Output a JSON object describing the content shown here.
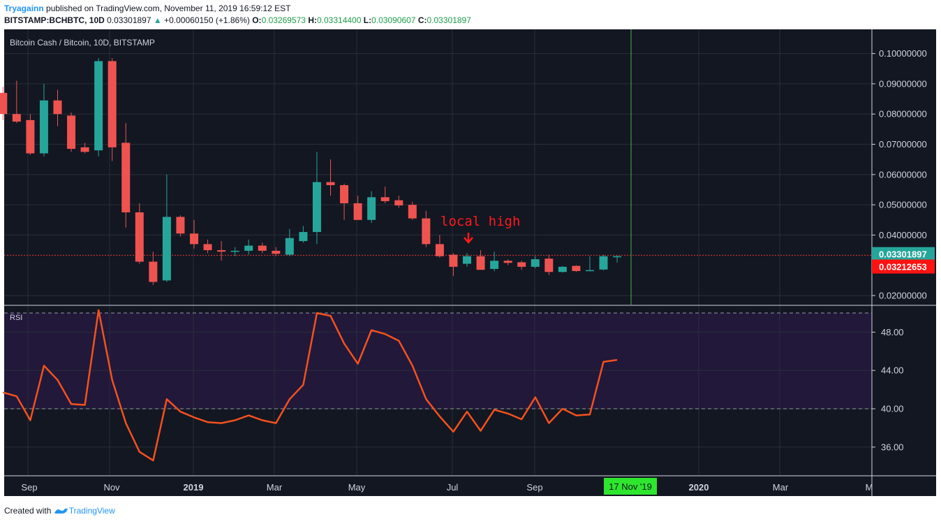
{
  "header": {
    "author": "Tryagainn",
    "published_text": "published on TradingView.com, November 11, 2019 16:59:12 EST",
    "symbol": "BITSTAMP:BCHBTC, 10D",
    "last": "0.03301897",
    "change": "+0.00060150 (+1.86%)",
    "o_label": "O:",
    "o_value": "0.03269573",
    "h_label": "H:",
    "h_value": "0.03314400",
    "l_label": "L:",
    "l_value": "0.03090607",
    "c_label": "C:",
    "c_value": "0.03301897"
  },
  "footer": {
    "created_with": "Created with",
    "brand": "TradingView"
  },
  "colors": {
    "background": "#131722",
    "rsi_band": "#21183a",
    "grid": "#2a2e39",
    "up": "#26a69a",
    "down": "#ef5350",
    "rsi_line": "#f4511e",
    "cursor": "#4caf50",
    "date_badge": "#2ee62e",
    "annotation": "#ff1a1a",
    "axis_text": "#d1d4dc"
  },
  "chart_data": [
    {
      "type": "candlestick",
      "title": "Bitcoin Cash / Bitcoin, 10D, BITSTAMP",
      "ylim": [
        0.017,
        0.108
      ],
      "y_ticks": [
        0.1,
        0.09,
        0.08,
        0.07,
        0.06,
        0.05,
        0.04,
        0.02
      ],
      "y_tick_labels": [
        "0.10000000",
        "0.09000000",
        "0.08000000",
        "0.07000000",
        "0.06000000",
        "0.05000000",
        "0.04000000",
        "0.02000000"
      ],
      "x_labels": [
        "Sep",
        "Nov",
        "2019",
        "Mar",
        "May",
        "Jul",
        "Sep",
        "2020",
        "Mar",
        "M"
      ],
      "cursor_date": "17 Nov '19",
      "price_labels": [
        {
          "value": 0.03301897,
          "text": "0.03301897",
          "kind": "up"
        },
        {
          "value": 0.03212653,
          "text": "0.03212653",
          "kind": "down"
        }
      ],
      "horizontal_line": 0.0333,
      "annotation": {
        "text": "local high",
        "target_candle": 34
      },
      "candles": [
        {
          "o": 0.087,
          "h": 0.089,
          "l": 0.078,
          "c": 0.08
        },
        {
          "o": 0.08,
          "h": 0.091,
          "l": 0.077,
          "c": 0.0775
        },
        {
          "o": 0.078,
          "h": 0.08,
          "l": 0.0665,
          "c": 0.067
        },
        {
          "o": 0.067,
          "h": 0.09,
          "l": 0.066,
          "c": 0.0845
        },
        {
          "o": 0.0845,
          "h": 0.088,
          "l": 0.076,
          "c": 0.08
        },
        {
          "o": 0.0795,
          "h": 0.0805,
          "l": 0.0675,
          "c": 0.0685
        },
        {
          "o": 0.069,
          "h": 0.0705,
          "l": 0.067,
          "c": 0.0675
        },
        {
          "o": 0.068,
          "h": 0.0985,
          "l": 0.066,
          "c": 0.0975
        },
        {
          "o": 0.0975,
          "h": 0.0985,
          "l": 0.0645,
          "c": 0.069
        },
        {
          "o": 0.0705,
          "h": 0.077,
          "l": 0.0425,
          "c": 0.0475
        },
        {
          "o": 0.0475,
          "h": 0.0505,
          "l": 0.0305,
          "c": 0.0312
        },
        {
          "o": 0.0312,
          "h": 0.0345,
          "l": 0.0235,
          "c": 0.0245
        },
        {
          "o": 0.025,
          "h": 0.06,
          "l": 0.0245,
          "c": 0.046
        },
        {
          "o": 0.046,
          "h": 0.0465,
          "l": 0.0395,
          "c": 0.0405
        },
        {
          "o": 0.0405,
          "h": 0.045,
          "l": 0.0355,
          "c": 0.037
        },
        {
          "o": 0.037,
          "h": 0.0385,
          "l": 0.034,
          "c": 0.035
        },
        {
          "o": 0.035,
          "h": 0.038,
          "l": 0.0315,
          "c": 0.0345
        },
        {
          "o": 0.0345,
          "h": 0.036,
          "l": 0.033,
          "c": 0.0348
        },
        {
          "o": 0.0348,
          "h": 0.0385,
          "l": 0.0335,
          "c": 0.0365
        },
        {
          "o": 0.0365,
          "h": 0.0375,
          "l": 0.034,
          "c": 0.0348
        },
        {
          "o": 0.0348,
          "h": 0.036,
          "l": 0.033,
          "c": 0.0338
        },
        {
          "o": 0.0335,
          "h": 0.042,
          "l": 0.033,
          "c": 0.039
        },
        {
          "o": 0.038,
          "h": 0.043,
          "l": 0.0375,
          "c": 0.041
        },
        {
          "o": 0.041,
          "h": 0.0675,
          "l": 0.037,
          "c": 0.0575
        },
        {
          "o": 0.0575,
          "h": 0.065,
          "l": 0.053,
          "c": 0.0565
        },
        {
          "o": 0.0565,
          "h": 0.057,
          "l": 0.045,
          "c": 0.0505
        },
        {
          "o": 0.0505,
          "h": 0.053,
          "l": 0.045,
          "c": 0.045
        },
        {
          "o": 0.045,
          "h": 0.0545,
          "l": 0.044,
          "c": 0.0525
        },
        {
          "o": 0.0525,
          "h": 0.056,
          "l": 0.0505,
          "c": 0.0512
        },
        {
          "o": 0.0515,
          "h": 0.053,
          "l": 0.049,
          "c": 0.0498
        },
        {
          "o": 0.05,
          "h": 0.051,
          "l": 0.045,
          "c": 0.0455
        },
        {
          "o": 0.0455,
          "h": 0.048,
          "l": 0.036,
          "c": 0.037
        },
        {
          "o": 0.037,
          "h": 0.04,
          "l": 0.0325,
          "c": 0.033
        },
        {
          "o": 0.0335,
          "h": 0.034,
          "l": 0.0265,
          "c": 0.0295
        },
        {
          "o": 0.0305,
          "h": 0.034,
          "l": 0.0295,
          "c": 0.033
        },
        {
          "o": 0.033,
          "h": 0.035,
          "l": 0.0285,
          "c": 0.0285
        },
        {
          "o": 0.0288,
          "h": 0.0345,
          "l": 0.028,
          "c": 0.0315
        },
        {
          "o": 0.0315,
          "h": 0.032,
          "l": 0.03,
          "c": 0.0308
        },
        {
          "o": 0.031,
          "h": 0.0315,
          "l": 0.0285,
          "c": 0.0295
        },
        {
          "o": 0.0295,
          "h": 0.033,
          "l": 0.029,
          "c": 0.032
        },
        {
          "o": 0.0322,
          "h": 0.0335,
          "l": 0.0268,
          "c": 0.0278
        },
        {
          "o": 0.0278,
          "h": 0.0298,
          "l": 0.0276,
          "c": 0.0295
        },
        {
          "o": 0.0298,
          "h": 0.03,
          "l": 0.0278,
          "c": 0.0281
        },
        {
          "o": 0.0282,
          "h": 0.033,
          "l": 0.028,
          "c": 0.0284
        },
        {
          "o": 0.0286,
          "h": 0.0335,
          "l": 0.0283,
          "c": 0.033
        },
        {
          "o": 0.0327,
          "h": 0.0332,
          "l": 0.0309,
          "c": 0.033
        }
      ]
    },
    {
      "type": "line",
      "title": "RSI",
      "ylim": [
        33.0,
        50.8
      ],
      "y_ticks": [
        48,
        44,
        40,
        36
      ],
      "y_tick_labels": [
        "48.00",
        "44.00",
        "40.00",
        "36.00"
      ],
      "bands": [
        40,
        50
      ],
      "values": [
        41.7,
        41.3,
        38.8,
        44.5,
        43.0,
        40.5,
        40.4,
        50.3,
        43.0,
        38.5,
        35.5,
        34.6,
        41.0,
        39.7,
        39.1,
        38.6,
        38.5,
        38.8,
        39.3,
        38.8,
        38.5,
        41.0,
        42.5,
        50.0,
        49.7,
        46.8,
        44.7,
        48.2,
        47.8,
        47.1,
        44.5,
        41.0,
        39.2,
        37.6,
        39.7,
        37.7,
        39.9,
        39.5,
        38.9,
        41.2,
        38.5,
        40.0,
        39.3,
        39.4,
        44.9,
        45.1
      ]
    }
  ]
}
